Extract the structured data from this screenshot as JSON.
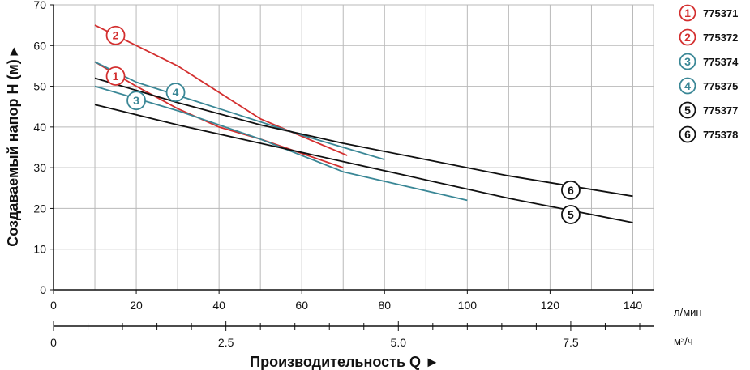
{
  "chart_data": {
    "type": "line",
    "ylabel": "Создаваемый напор H (м) ▸",
    "xlabel": "Производительность Q ►",
    "x_unit": "л/мин",
    "x2_unit": "м³/ч",
    "xlim": [
      0,
      145
    ],
    "ylim": [
      0,
      70
    ],
    "x_ticks": [
      "0",
      "20",
      "40",
      "60",
      "80",
      "100",
      "120",
      "140"
    ],
    "y_ticks": [
      "0",
      "10",
      "20",
      "30",
      "40",
      "50",
      "60",
      "70"
    ],
    "x2_ticks": [
      "0",
      "2.5",
      "5.0",
      "7.5"
    ],
    "grid": true,
    "legend_position": "right",
    "series": [
      {
        "name": "775371",
        "marker": "1",
        "color": "#d32f2f",
        "x": [
          10,
          20,
          30,
          40,
          50,
          60,
          70
        ],
        "y": [
          56,
          50,
          44.5,
          40,
          37,
          33.5,
          30
        ],
        "badge_x": 15,
        "badge_y": 52.5
      },
      {
        "name": "775372",
        "marker": "2",
        "color": "#d32f2f",
        "x": [
          10,
          30,
          50,
          71
        ],
        "y": [
          65,
          55,
          42,
          33
        ],
        "badge_x": 15,
        "badge_y": 62.5
      },
      {
        "name": "775374",
        "marker": "3",
        "color": "#3a8796",
        "x": [
          10,
          30,
          50,
          70,
          100
        ],
        "y": [
          50,
          44,
          37,
          29,
          22
        ],
        "badge_x": 20,
        "badge_y": 46.5
      },
      {
        "name": "775375",
        "marker": "4",
        "color": "#3a8796",
        "x": [
          10,
          20,
          40,
          60,
          80
        ],
        "y": [
          56,
          51,
          44.5,
          38,
          32
        ],
        "badge_x": 29.5,
        "badge_y": 48.5
      },
      {
        "name": "775377",
        "marker": "5",
        "color": "#111111",
        "x": [
          10,
          30,
          50,
          70,
          90,
          110,
          125,
          140
        ],
        "y": [
          45.5,
          40.5,
          36,
          31.5,
          27,
          22.5,
          19.5,
          16.5
        ],
        "badge_x": 125,
        "badge_y": 18.5
      },
      {
        "name": "775378",
        "marker": "6",
        "color": "#111111",
        "x": [
          10,
          30,
          50,
          70,
          90,
          110,
          125,
          140
        ],
        "y": [
          52,
          46,
          40.5,
          36,
          32,
          28,
          25.5,
          23
        ],
        "badge_x": 125,
        "badge_y": 24.5
      }
    ]
  }
}
